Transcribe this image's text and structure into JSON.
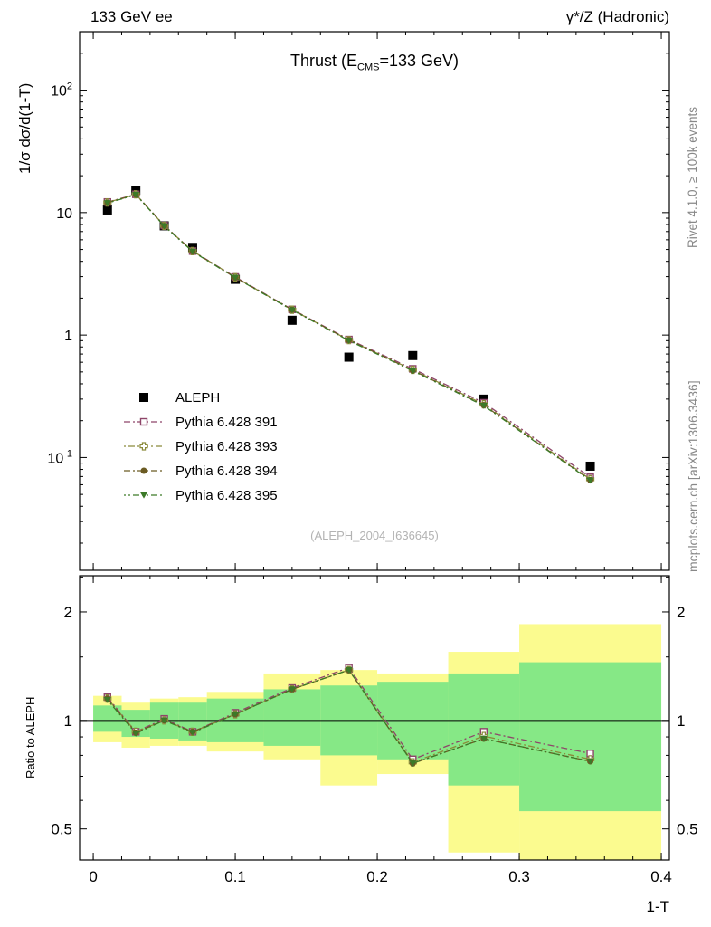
{
  "header": {
    "left": "133 GeV ee",
    "right": "γ*/Z (Hadronic)"
  },
  "title": {
    "pre": "Thrust (E",
    "sub": "CMS",
    "post": "=133 GeV)"
  },
  "axis_labels": {
    "y_main": "1/σ dσ/d(1-T)",
    "y_ratio": "Ratio to ALEPH",
    "x": "1-T"
  },
  "side_notes": {
    "top": "Rivet 4.1.0, ≥ 100k events",
    "bottom": "mcplots.cern.ch [arXiv:1306.3436]"
  },
  "watermark": "(ALEPH_2004_I636645)",
  "chart_data": [
    {
      "id": "main",
      "type": "line",
      "title": "Thrust (E_CMS=133 GeV)",
      "xlabel": "1-T",
      "ylabel": "1/σ dσ/d(1-T)",
      "yscale": "log",
      "xlim": [
        -0.0096,
        0.4057
      ],
      "ylim": [
        0.012,
        300
      ],
      "xticks": [
        0,
        0.1,
        0.2,
        0.3,
        0.4
      ],
      "xminor": 0.02,
      "ylog_decades": [
        -2,
        2
      ],
      "label_decades": true,
      "show_xlabels": false,
      "legend_position": "left-middle",
      "grid": false,
      "x": [
        0.01,
        0.03,
        0.05,
        0.07,
        0.1,
        0.14,
        0.18,
        0.225,
        0.275,
        0.35
      ],
      "series": [
        {
          "name": "ALEPH",
          "marker": "square-filled",
          "color": "#000000",
          "line": false,
          "msize": 5,
          "values": [
            10.5,
            15.2,
            7.8,
            5.2,
            2.85,
            1.32,
            0.66,
            0.68,
            0.3,
            0.085
          ]
        },
        {
          "name": "Pythia 6.428 391",
          "marker": "square-open",
          "color": "#8e4569",
          "line": true,
          "dash": "7 3 2 3",
          "values": [
            12.2,
            14.1,
            7.85,
            4.85,
            2.98,
            1.62,
            0.92,
            0.53,
            0.28,
            0.069
          ]
        },
        {
          "name": "Pythia 6.428 393",
          "marker": "cross-open",
          "color": "#8a8a3a",
          "line": true,
          "dash": "2 3 7 3",
          "values": [
            12.1,
            14.1,
            7.8,
            4.85,
            2.96,
            1.61,
            0.91,
            0.52,
            0.272,
            0.0665
          ]
        },
        {
          "name": "Pythia 6.428 394",
          "marker": "circle-filled",
          "color": "#6b5b23",
          "line": true,
          "dash": "7 3 2 3",
          "values": [
            12.05,
            14.05,
            7.8,
            4.83,
            2.95,
            1.61,
            0.91,
            0.515,
            0.268,
            0.0655
          ]
        },
        {
          "name": "Pythia 6.428 395",
          "marker": "triangle-down-filled",
          "color": "#3c7a28",
          "line": true,
          "dash": "2 3 2 3 7 3",
          "values": [
            11.95,
            14.0,
            7.75,
            4.8,
            2.94,
            1.6,
            0.9,
            0.51,
            0.265,
            0.065
          ]
        }
      ]
    },
    {
      "id": "ratio",
      "type": "line",
      "title": "",
      "ylabel": "Ratio to ALEPH",
      "xlabel": "1-T",
      "yscale": "log",
      "xlim": [
        -0.0096,
        0.4057
      ],
      "ylim": [
        0.41,
        2.52
      ],
      "xticks": [
        0,
        0.1,
        0.2,
        0.3,
        0.4
      ],
      "xminor": 0.02,
      "yticks": [
        0.5,
        1,
        2
      ],
      "yminors": [
        0.4,
        0.6,
        0.7,
        0.8,
        0.9,
        1.5,
        2.5
      ],
      "ytick_labels_both": true,
      "show_xlabels": true,
      "unity_line": true,
      "grid": false,
      "bin_edges": [
        0,
        0.02,
        0.04,
        0.06,
        0.08,
        0.12,
        0.16,
        0.2,
        0.25,
        0.3,
        0.4
      ],
      "bands": [
        {
          "name": "data-uncertainty-outer",
          "color": "#fbfb8f",
          "lo": [
            0.87,
            0.84,
            0.85,
            0.85,
            0.82,
            0.78,
            0.66,
            0.71,
            0.43,
            0.35
          ],
          "hi": [
            1.17,
            1.12,
            1.15,
            1.16,
            1.2,
            1.35,
            1.38,
            1.35,
            1.55,
            1.85
          ]
        },
        {
          "name": "data-uncertainty-inner",
          "color": "#86e886",
          "lo": [
            0.93,
            0.9,
            0.89,
            0.88,
            0.87,
            0.85,
            0.8,
            0.78,
            0.66,
            0.56
          ],
          "hi": [
            1.1,
            1.07,
            1.12,
            1.12,
            1.15,
            1.22,
            1.25,
            1.28,
            1.35,
            1.45
          ]
        }
      ],
      "x": [
        0.01,
        0.03,
        0.05,
        0.07,
        0.1,
        0.14,
        0.18,
        0.225,
        0.275,
        0.35
      ],
      "series": [
        {
          "name": "Pythia 6.428 391",
          "marker": "square-open",
          "color": "#8e4569",
          "line": true,
          "dash": "7 3 2 3",
          "values": [
            1.16,
            0.93,
            1.01,
            0.93,
            1.05,
            1.23,
            1.4,
            0.78,
            0.93,
            0.81
          ]
        },
        {
          "name": "Pythia 6.428 393",
          "marker": "cross-open",
          "color": "#8a8a3a",
          "line": true,
          "dash": "2 3 7 3",
          "values": [
            1.15,
            0.93,
            1.0,
            0.93,
            1.04,
            1.22,
            1.38,
            0.765,
            0.905,
            0.78
          ]
        },
        {
          "name": "Pythia 6.428 394",
          "marker": "circle-filled",
          "color": "#6b5b23",
          "line": true,
          "dash": "7 3 2 3",
          "values": [
            1.15,
            0.925,
            1.0,
            0.93,
            1.04,
            1.22,
            1.38,
            0.76,
            0.89,
            0.77
          ]
        },
        {
          "name": "Pythia 6.428 395",
          "marker": "triangle-down-filled",
          "color": "#3c7a28",
          "line": true,
          "dash": "2 3 2 3 7 3",
          "values": [
            1.14,
            0.92,
            1.0,
            0.925,
            1.04,
            1.22,
            1.38,
            0.76,
            0.89,
            0.77
          ]
        }
      ]
    }
  ]
}
